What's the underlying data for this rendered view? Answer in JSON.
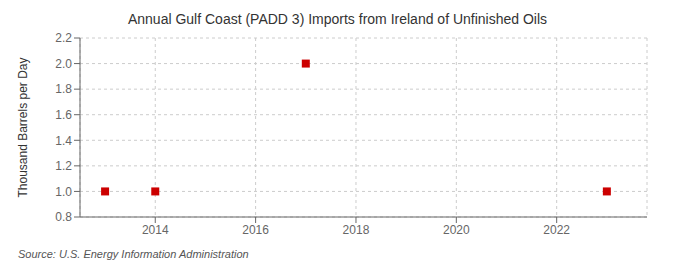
{
  "chart_data": {
    "type": "scatter",
    "title": "Annual Gulf Coast (PADD 3) Imports from Ireland of Unfinished Oils",
    "ylabel": "Thousand Barrels per Day",
    "annotations": [
      "Source: U.S. Energy Information Administration"
    ],
    "x": [
      2013,
      2014,
      2017,
      2023
    ],
    "values": [
      1.0,
      1.0,
      2.0,
      1.0
    ],
    "color": "#cc0000",
    "marker": "square",
    "xlim": [
      2012.5,
      2023.8
    ],
    "ylim": [
      0.8,
      2.2
    ],
    "xticks": [
      2014,
      2016,
      2018,
      2020,
      2022
    ],
    "yticks": [
      0.8,
      {
        "value": 1.0,
        "label": "1.0"
      },
      1.2,
      1.4,
      1.6,
      1.8,
      {
        "value": 2.0,
        "label": "2.0"
      },
      2.2
    ],
    "grid": true
  }
}
